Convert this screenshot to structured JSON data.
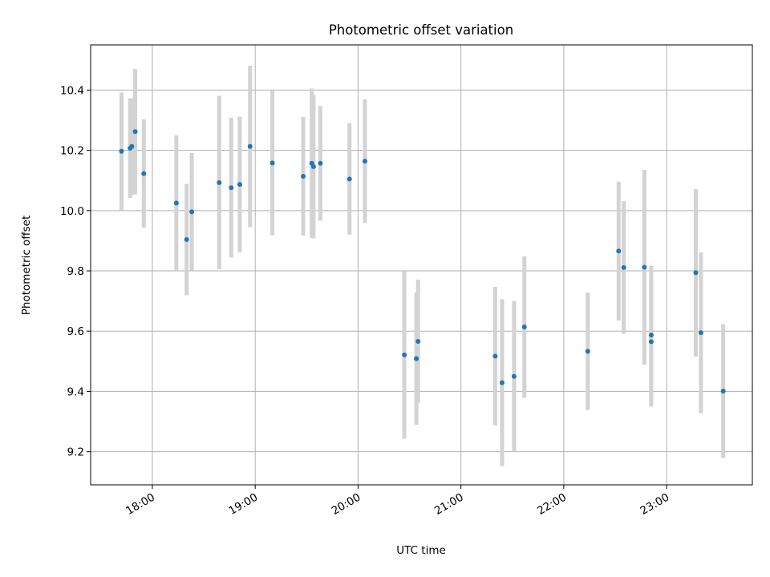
{
  "chart_data": {
    "type": "scatter",
    "title": "Photometric offset variation",
    "xlabel": "UTC time",
    "ylabel": "Photometric offset",
    "x_unit": "UTC time of day (hh:mm)",
    "xlim": [
      "17:24",
      "23:50"
    ],
    "ylim": [
      9.09,
      10.55
    ],
    "x_ticks": [
      "18:00",
      "19:00",
      "20:00",
      "21:00",
      "22:00",
      "23:00"
    ],
    "y_ticks": [
      9.2,
      9.4,
      9.6,
      9.8,
      10.0,
      10.2,
      10.4
    ],
    "y_tick_labels": [
      "9.2",
      "9.4",
      "9.6",
      "9.8",
      "10.0",
      "10.2",
      "10.4"
    ],
    "grid": true,
    "legend": false,
    "colors": {
      "point": "#1f77b4",
      "errorbar": "#d3d3d3",
      "grid": "#b0b0b0"
    },
    "series": [
      {
        "points": [
          {
            "x": "17:42",
            "y": 10.197,
            "yerr": 0.195
          },
          {
            "x": "17:47",
            "y": 10.207,
            "yerr": 0.165
          },
          {
            "x": "17:48",
            "y": 10.213,
            "yerr": 0.16
          },
          {
            "x": "17:50",
            "y": 10.262,
            "yerr": 0.208
          },
          {
            "x": "17:55",
            "y": 10.123,
            "yerr": 0.18
          },
          {
            "x": "18:14",
            "y": 10.025,
            "yerr": 0.225
          },
          {
            "x": "18:20",
            "y": 9.904,
            "yerr": 0.185
          },
          {
            "x": "18:23",
            "y": 9.996,
            "yerr": 0.195
          },
          {
            "x": "18:39",
            "y": 10.093,
            "yerr": 0.288
          },
          {
            "x": "18:46",
            "y": 10.076,
            "yerr": 0.232
          },
          {
            "x": "18:51",
            "y": 10.087,
            "yerr": 0.225
          },
          {
            "x": "18:57",
            "y": 10.213,
            "yerr": 0.268
          },
          {
            "x": "19:10",
            "y": 10.158,
            "yerr": 0.24
          },
          {
            "x": "19:28",
            "y": 10.114,
            "yerr": 0.197
          },
          {
            "x": "19:33",
            "y": 10.157,
            "yerr": 0.248
          },
          {
            "x": "19:34",
            "y": 10.146,
            "yerr": 0.238
          },
          {
            "x": "19:38",
            "y": 10.157,
            "yerr": 0.19
          },
          {
            "x": "19:55",
            "y": 10.105,
            "yerr": 0.185
          },
          {
            "x": "20:04",
            "y": 10.164,
            "yerr": 0.205
          },
          {
            "x": "20:27",
            "y": 9.521,
            "yerr": 0.278
          },
          {
            "x": "20:34",
            "y": 9.509,
            "yerr": 0.22
          },
          {
            "x": "20:35",
            "y": 9.566,
            "yerr": 0.205
          },
          {
            "x": "21:20",
            "y": 9.517,
            "yerr": 0.23
          },
          {
            "x": "21:24",
            "y": 9.429,
            "yerr": 0.277
          },
          {
            "x": "21:31",
            "y": 9.45,
            "yerr": 0.25
          },
          {
            "x": "21:37",
            "y": 9.614,
            "yerr": 0.235
          },
          {
            "x": "22:14",
            "y": 9.533,
            "yerr": 0.195
          },
          {
            "x": "22:32",
            "y": 9.866,
            "yerr": 0.23
          },
          {
            "x": "22:35",
            "y": 9.811,
            "yerr": 0.22
          },
          {
            "x": "22:47",
            "y": 9.812,
            "yerr": 0.323
          },
          {
            "x": "22:51",
            "y": 9.565,
            "yerr": 0.215
          },
          {
            "x": "22:51",
            "y": 9.587,
            "yerr": 0.23
          },
          {
            "x": "23:17",
            "y": 9.794,
            "yerr": 0.278
          },
          {
            "x": "23:20",
            "y": 9.595,
            "yerr": 0.267
          },
          {
            "x": "23:33",
            "y": 9.401,
            "yerr": 0.222
          }
        ]
      }
    ]
  }
}
